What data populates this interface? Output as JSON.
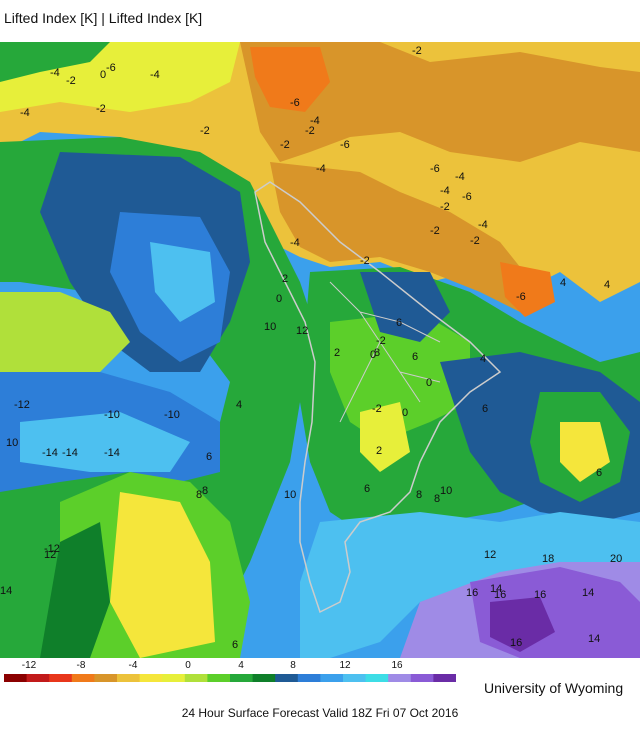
{
  "header": {
    "title": "Lifted Index [K] | Lifted Index [K]"
  },
  "colorbar": {
    "tick_labels": [
      "-12",
      "-8",
      "-4",
      "0",
      "4",
      "8",
      "12",
      "16"
    ],
    "colors": [
      "#8b0000",
      "#c21a1a",
      "#e8361b",
      "#f07a1a",
      "#d8952a",
      "#ecc23b",
      "#f5e63b",
      "#e7ef3a",
      "#b0e03a",
      "#5ccf2a",
      "#26a83a",
      "#0f7f2a",
      "#1f5a95",
      "#2d7ed8",
      "#3ba0ec",
      "#4dc0f0",
      "#3ddde6",
      "#9f8be6",
      "#8a5bd6",
      "#6a2ca6"
    ]
  },
  "map_labels": {
    "items": [
      "-2",
      "-4",
      "-2",
      "0",
      "-6",
      "-4",
      "-2",
      "-4",
      "-2",
      "-6",
      "-4",
      "-2",
      "-6",
      "-2",
      "-4",
      "-6",
      "-4",
      "-2",
      "-4",
      "-6",
      "-2",
      "-4",
      "-6",
      "-2",
      "-2",
      "-4",
      "2",
      "0",
      "-2",
      "2",
      "0",
      "10",
      "12",
      "8",
      "6",
      "6",
      "4",
      "-12",
      "-10",
      "-10",
      "10",
      "-14",
      "-14",
      "-14",
      "-12",
      "10",
      "4",
      "6",
      "8",
      "2",
      "0",
      "8",
      "0",
      "6",
      "-2",
      "6",
      "4",
      "4",
      "6",
      "8",
      "10",
      "12",
      "14",
      "16",
      "18",
      "20",
      "16",
      "16",
      "14",
      "16",
      "14",
      "12",
      "14",
      "6",
      "8"
    ]
  },
  "credit": "University of Wyoming",
  "footer": "24 Hour Surface Forecast Valid 18Z Fri 07 Oct 2016"
}
